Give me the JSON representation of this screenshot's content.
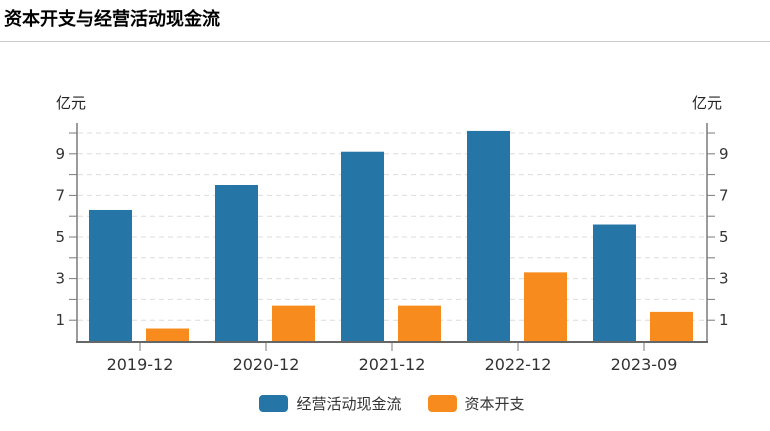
{
  "title": "资本开支与经营活动现金流",
  "chart_data": {
    "type": "bar",
    "title": "资本开支与经营活动现金流",
    "categories": [
      "2019-12",
      "2020-12",
      "2021-12",
      "2022-12",
      "2023-09"
    ],
    "series": [
      {
        "name": "经营活动现金流",
        "color": "#2576A6",
        "values": [
          6.3,
          7.5,
          9.1,
          10.1,
          5.6
        ]
      },
      {
        "name": "资本开支",
        "color": "#F78B1D",
        "values": [
          0.6,
          1.7,
          1.7,
          3.3,
          1.4
        ]
      }
    ],
    "y_unit": "亿元",
    "y_axis": {
      "min": 0,
      "max": 10.5,
      "tick_interval": 1,
      "labeled_ticks": [
        1,
        3,
        5,
        7,
        9
      ],
      "mirrored_right_axis": true
    },
    "grid": true,
    "legend_position": "bottom",
    "colors": {
      "axis": "#7a7a7a",
      "axis_bottom": "#666666",
      "grid": "#dcdcdc",
      "tick_text": "#333333",
      "divider": "#cccccc"
    }
  }
}
